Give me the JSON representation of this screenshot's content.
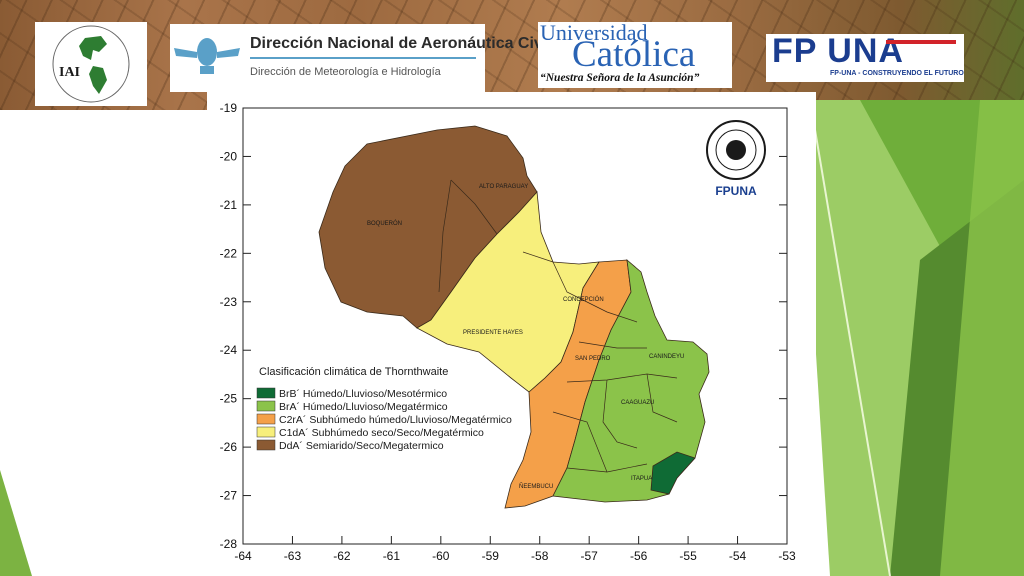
{
  "logos": {
    "iai": {
      "abbr": "IAI",
      "ring_text": "FOR GLOBAL CHANGE RESEARCH · INTER-AMERICAN INSTITUTE"
    },
    "dinac": {
      "title": "Dirección Nacional de Aeronáutica Civil",
      "subtitle": "Dirección de Meteorología e Hidrología"
    },
    "uc": {
      "line1": "Universidad",
      "line2": "Católica",
      "motto": "“Nuestra Señora de la Asunción”"
    },
    "fpuna": {
      "wordmark": "FP UNA",
      "tagline": "FP-UNA - CONSTRUYENDO EL FUTURO"
    }
  },
  "map": {
    "stamp_label": "FPUNA",
    "legend_title": "Clasificación climática de Thornthwaite",
    "legend": [
      {
        "code": "BrB´",
        "label": "BrB´ Húmedo/Lluvioso/Mesotérmico",
        "color": "#0f6b35"
      },
      {
        "code": "BrA´",
        "label": "BrA´ Húmedo/Lluvioso/Megatérmico",
        "color": "#8bc34a"
      },
      {
        "code": "C2rA´",
        "label": "C2rA´ Subhúmedo húmedo/Lluvioso/Megatérmico",
        "color": "#f4a049"
      },
      {
        "code": "C1dA´",
        "label": "C1dA´ Subhúmedo seco/Seco/Megatérmico",
        "color": "#f7ef7c"
      },
      {
        "code": "DdA´",
        "label": "DdA´ Semiarido/Seco/Megatermico",
        "color": "#8b5a33"
      }
    ],
    "departments": [
      "ALTO PARAGUAY",
      "BOQUERÓN",
      "PRESIDENTE HAYES",
      "CONCEPCIÓN",
      "SAN PEDRO",
      "CANINDEYU",
      "CAAGUAZU",
      "ÑEEMBUCU",
      "ITAPUA"
    ],
    "y_ticks": [
      "-19",
      "-20",
      "-21",
      "-22",
      "-23",
      "-24",
      "-25",
      "-26",
      "-27",
      "-28"
    ],
    "x_ticks": [
      "-64",
      "-63",
      "-62",
      "-61",
      "-60",
      "-59",
      "-58",
      "-57",
      "-56",
      "-55",
      "-54",
      "-53"
    ]
  }
}
